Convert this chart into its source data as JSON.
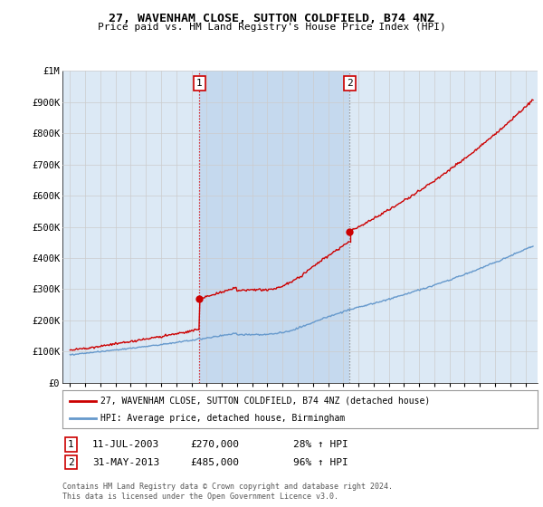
{
  "title_line1": "27, WAVENHAM CLOSE, SUTTON COLDFIELD, B74 4NZ",
  "title_line2": "Price paid vs. HM Land Registry's House Price Index (HPI)",
  "background_color": "#ffffff",
  "plot_bg_color": "#dce9f5",
  "grid_color": "#cccccc",
  "hpi_color": "#6699cc",
  "price_color": "#cc0000",
  "marker_color": "#cc0000",
  "sale1_t": 2003.53,
  "sale1_price": 270000,
  "sale2_t": 2013.42,
  "sale2_price": 485000,
  "legend_line1": "27, WAVENHAM CLOSE, SUTTON COLDFIELD, B74 4NZ (detached house)",
  "legend_line2": "HPI: Average price, detached house, Birmingham",
  "note1_label": "1",
  "note1_date": "11-JUL-2003",
  "note1_price": "£270,000",
  "note1_hpi": "28% ↑ HPI",
  "note2_label": "2",
  "note2_date": "31-MAY-2013",
  "note2_price": "£485,000",
  "note2_hpi": "96% ↑ HPI",
  "copyright": "Contains HM Land Registry data © Crown copyright and database right 2024.\nThis data is licensed under the Open Government Licence v3.0.",
  "ylim": [
    0,
    1000000
  ],
  "yticks": [
    0,
    100000,
    200000,
    300000,
    400000,
    500000,
    600000,
    700000,
    800000,
    900000,
    1000000
  ],
  "ytick_labels": [
    "£0",
    "£100K",
    "£200K",
    "£300K",
    "£400K",
    "£500K",
    "£600K",
    "£700K",
    "£800K",
    "£900K",
    "£1M"
  ],
  "xlim_left": 1994.5,
  "xlim_right": 2025.8
}
